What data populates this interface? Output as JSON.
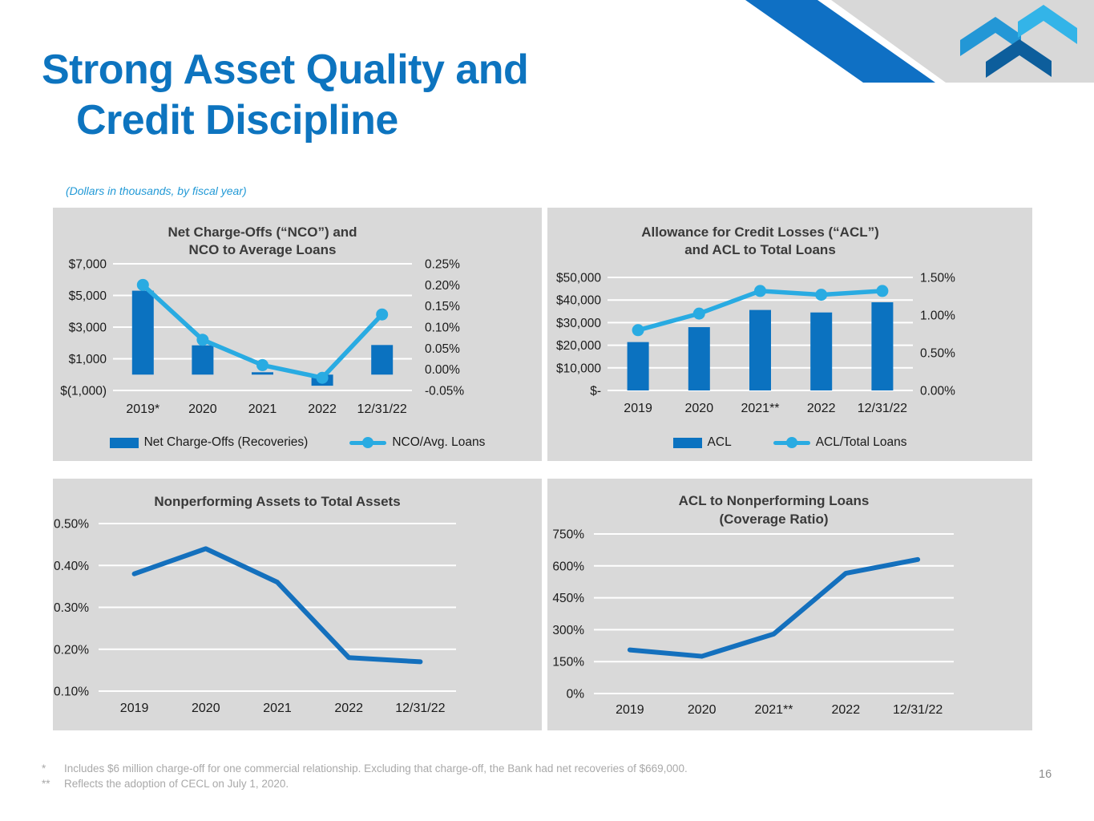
{
  "slide": {
    "title_line1": "Strong Asset Quality and",
    "title_line2": "Credit Discipline",
    "subtitle": "(Dollars in thousands, by fiscal year)",
    "page_number": "16",
    "footnotes": [
      {
        "marker": "*",
        "text": "Includes $6 million charge-off for one commercial relationship.  Excluding that charge-off, the Bank had net recoveries of $669,000."
      },
      {
        "marker": "**",
        "text": "Reflects the adoption of CECL on July 1, 2020."
      }
    ]
  },
  "colors": {
    "title_blue": "#0d74bf",
    "subtitle_blue": "#2199d6",
    "bar_blue": "#0b72c0",
    "line_light_blue": "#29abe2",
    "line_dark_blue": "#1470bd",
    "panel_gray": "#d9d9d9",
    "banner_gray": "#d8d8d8",
    "banner_stripe": "#0f70c4",
    "chevron_mid": "#2397d6",
    "chevron_light": "#33b4e8",
    "chevron_dark": "#0d5e9c",
    "footnote_gray": "#a9a9a9"
  },
  "chart_data": [
    {
      "id": "nco",
      "type": "bar",
      "title": [
        "Net Charge-Offs (“NCO”) and",
        "NCO to Average Loans"
      ],
      "categories": [
        "2019*",
        "2020",
        "2021",
        "2022",
        "12/31/22"
      ],
      "y_axis": {
        "min": -1000,
        "max": 7000,
        "ticks": [
          {
            "label": "$7,000",
            "value": 7000
          },
          {
            "label": "$5,000",
            "value": 5000
          },
          {
            "label": "$3,000",
            "value": 3000
          },
          {
            "label": "$1,000",
            "value": 1000
          },
          {
            "label": "$(1,000)",
            "value": -1000
          }
        ]
      },
      "y2_axis": {
        "min": -0.05,
        "max": 0.25,
        "ticks": [
          {
            "label": "0.25%",
            "value": 0.25
          },
          {
            "label": "0.20%",
            "value": 0.2
          },
          {
            "label": "0.15%",
            "value": 0.15
          },
          {
            "label": "0.10%",
            "value": 0.1
          },
          {
            "label": "0.05%",
            "value": 0.05
          },
          {
            "label": "0.00%",
            "value": 0.0
          },
          {
            "label": "-0.05%",
            "value": -0.05
          }
        ]
      },
      "series": [
        {
          "type": "bar",
          "name": "Net Charge-Offs (Recoveries)",
          "axis": "left",
          "color": "#0b72c0",
          "values": [
            5300,
            1850,
            150,
            -700,
            1870
          ]
        },
        {
          "type": "line",
          "name": "NCO/Avg. Loans",
          "axis": "right",
          "color": "#29abe2",
          "markers": true,
          "values": [
            0.2,
            0.07,
            0.01,
            -0.02,
            0.13
          ]
        }
      ],
      "legend": true,
      "grid": true,
      "legend_position": "bottom"
    },
    {
      "id": "acl",
      "type": "bar",
      "title": [
        "Allowance for Credit Losses (“ACL”)",
        "and ACL to Total Loans"
      ],
      "categories": [
        "2019",
        "2020",
        "2021**",
        "2022",
        "12/31/22"
      ],
      "y_axis": {
        "min": 0,
        "max": 50000,
        "ticks": [
          {
            "label": "$50,000",
            "value": 50000
          },
          {
            "label": "$40,000",
            "value": 40000
          },
          {
            "label": "$30,000",
            "value": 30000
          },
          {
            "label": "$20,000",
            "value": 20000
          },
          {
            "label": "$10,000",
            "value": 10000
          },
          {
            "label": "$-",
            "value": 0
          }
        ]
      },
      "y2_axis": {
        "min": 0,
        "max": 1.5,
        "ticks": [
          {
            "label": "1.50%",
            "value": 1.5
          },
          {
            "label": "1.00%",
            "value": 1.0
          },
          {
            "label": "0.50%",
            "value": 0.5
          },
          {
            "label": "0.00%",
            "value": 0.0
          }
        ]
      },
      "series": [
        {
          "type": "bar",
          "name": "ACL",
          "axis": "left",
          "color": "#0b72c0",
          "values": [
            21400,
            28000,
            35600,
            34500,
            39000
          ]
        },
        {
          "type": "line",
          "name": "ACL/Total Loans",
          "axis": "right",
          "color": "#29abe2",
          "markers": true,
          "values": [
            0.8,
            1.02,
            1.32,
            1.27,
            1.32
          ]
        }
      ],
      "legend": true,
      "grid": true,
      "legend_position": "bottom"
    },
    {
      "id": "npa",
      "type": "line",
      "title": [
        "Nonperforming Assets to Total Assets"
      ],
      "categories": [
        "2019",
        "2020",
        "2021",
        "2022",
        "12/31/22"
      ],
      "y_axis": {
        "min": 0.1,
        "max": 0.5,
        "ticks": [
          {
            "label": "0.50%",
            "value": 0.5
          },
          {
            "label": "0.40%",
            "value": 0.4
          },
          {
            "label": "0.30%",
            "value": 0.3
          },
          {
            "label": "0.20%",
            "value": 0.2
          },
          {
            "label": "0.10%",
            "value": 0.1
          }
        ]
      },
      "series": [
        {
          "type": "line",
          "name": "NPA/Total Assets",
          "axis": "left",
          "color": "#1470bd",
          "markers": false,
          "values": [
            0.38,
            0.44,
            0.36,
            0.18,
            0.17
          ]
        }
      ],
      "legend": false,
      "grid": true
    },
    {
      "id": "cov",
      "type": "line",
      "title": [
        "ACL to Nonperforming Loans",
        "(Coverage Ratio)"
      ],
      "categories": [
        "2019",
        "2020",
        "2021**",
        "2022",
        "12/31/22"
      ],
      "y_axis": {
        "min": 0,
        "max": 750,
        "ticks": [
          {
            "label": "750%",
            "value": 750
          },
          {
            "label": "600%",
            "value": 600
          },
          {
            "label": "450%",
            "value": 450
          },
          {
            "label": "300%",
            "value": 300
          },
          {
            "label": "150%",
            "value": 150
          },
          {
            "label": "0%",
            "value": 0
          }
        ]
      },
      "series": [
        {
          "type": "line",
          "name": "Coverage Ratio",
          "axis": "left",
          "color": "#1470bd",
          "markers": false,
          "values": [
            205,
            175,
            280,
            565,
            630
          ]
        }
      ],
      "legend": false,
      "grid": true
    }
  ]
}
